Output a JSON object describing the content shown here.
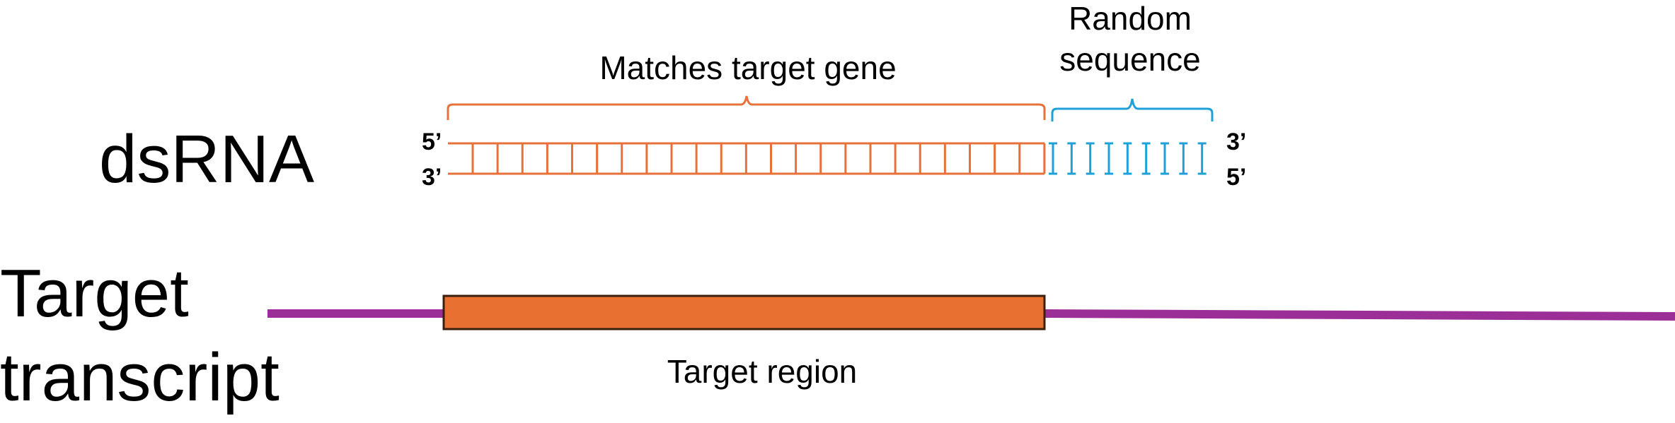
{
  "labels": {
    "dsrna": "dsRNA",
    "target_line1": "Target",
    "target_line2": "transcript",
    "matches_target_gene": "Matches target gene",
    "random_line1": "Random",
    "random_line2": "sequence",
    "target_region": "Target region",
    "top_left_end": "5’",
    "bottom_left_end": "3’",
    "top_right_end": "3’",
    "bottom_right_end": "5’"
  },
  "colors": {
    "matching_segment": "#e8703a",
    "random_segment": "#1fa1d8",
    "transcript_line": "#9b2f97",
    "target_region_fill": "#e87030",
    "target_region_border": "#3a1f0e",
    "text": "#000000"
  },
  "dsrna": {
    "matching_rungs": 24,
    "random_rungs": 9
  }
}
